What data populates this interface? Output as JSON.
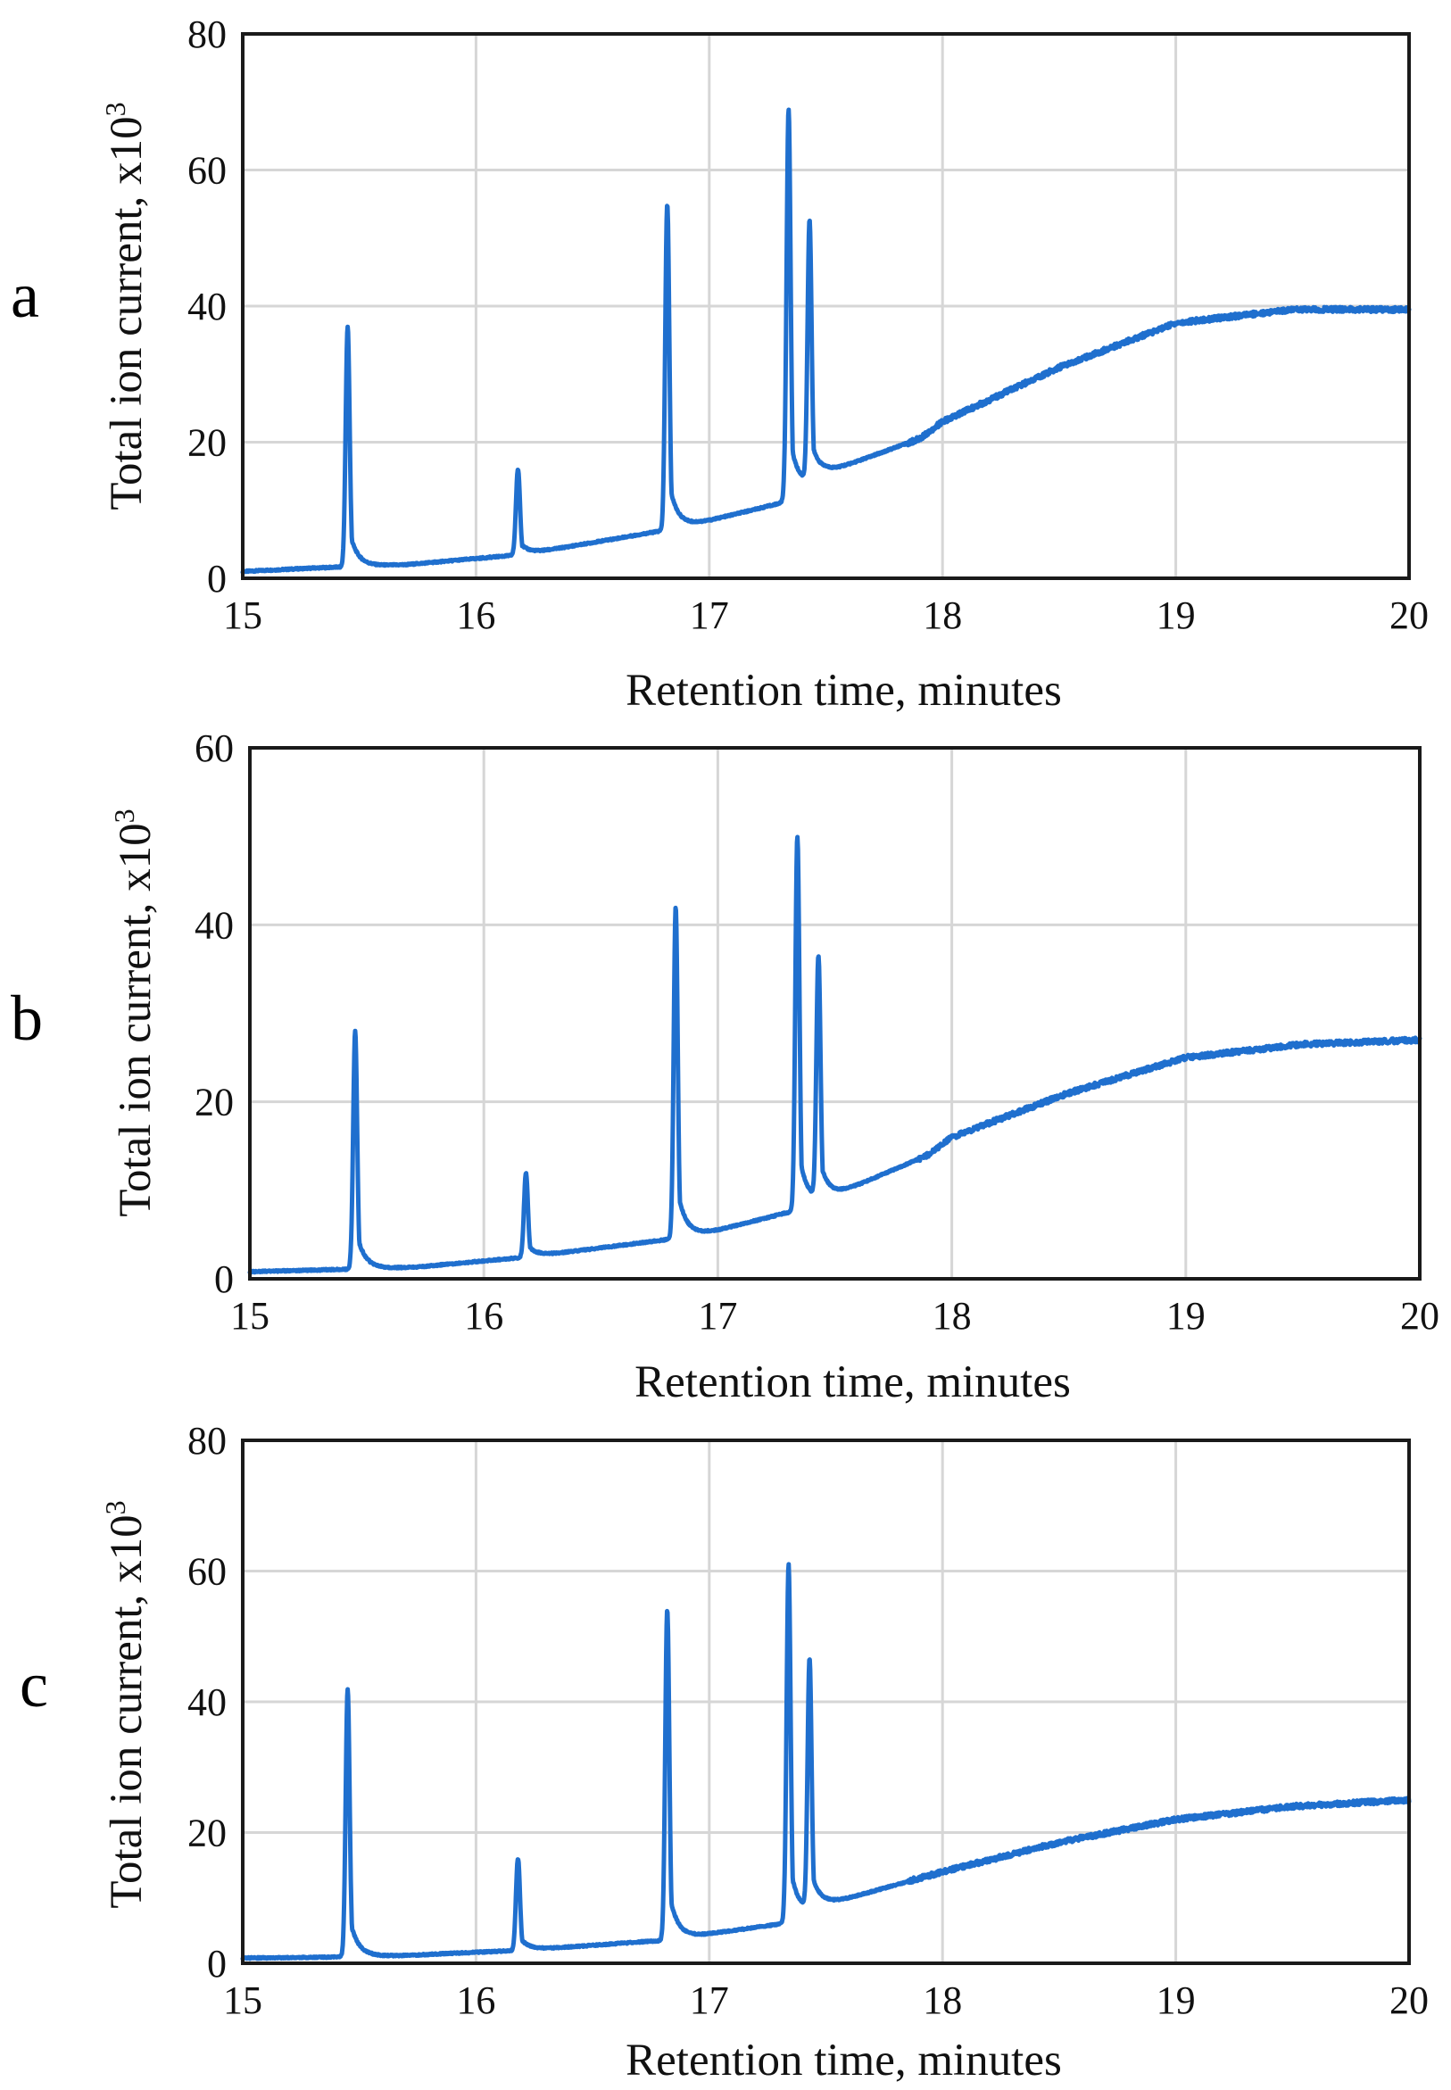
{
  "figure": {
    "background": "#ffffff",
    "trace_color": "#1f6fce"
  },
  "chart_data": [
    {
      "type": "line",
      "panel_label": "a",
      "xlabel": "Retention time, minutes",
      "ylabel": "Total ion current, x10",
      "ylabel_superscript": "3",
      "xlim": [
        15,
        20
      ],
      "ylim": [
        0,
        80
      ],
      "xticks": [
        "15",
        "16",
        "17",
        "18",
        "19",
        "20"
      ],
      "yticks": [
        "0",
        "20",
        "40",
        "60",
        "80"
      ],
      "grid": true,
      "series": [
        {
          "name": "Total ion current",
          "baseline": [
            [
              15,
              1
            ],
            [
              15.3,
              1.5
            ],
            [
              15.7,
              2
            ],
            [
              16.2,
              3.5
            ],
            [
              16.8,
              7
            ],
            [
              17.0,
              8.5
            ],
            [
              17.3,
              11
            ],
            [
              17.5,
              15.5
            ],
            [
              17.9,
              20.5
            ],
            [
              18.0,
              23
            ],
            [
              18.5,
              31
            ],
            [
              19.0,
              37.5
            ],
            [
              19.5,
              39.5
            ],
            [
              20.0,
              39.5
            ]
          ],
          "peaks": [
            {
              "rt": 15.45,
              "apex": 37
            },
            {
              "rt": 16.18,
              "apex": 16
            },
            {
              "rt": 16.82,
              "apex": 55
            },
            {
              "rt": 17.34,
              "apex": 69
            },
            {
              "rt": 17.43,
              "apex": 52
            }
          ]
        }
      ]
    },
    {
      "type": "line",
      "panel_label": "b",
      "xlabel": "Retention time, minutes",
      "ylabel": "Total ion current, x10",
      "ylabel_superscript": "3",
      "xlim": [
        15,
        20
      ],
      "ylim": [
        0,
        60
      ],
      "xticks": [
        "15",
        "16",
        "17",
        "18",
        "19",
        "20"
      ],
      "yticks": [
        "0",
        "20",
        "40",
        "60"
      ],
      "grid": true,
      "series": [
        {
          "name": "Total ion current",
          "baseline": [
            [
              15,
              0.8
            ],
            [
              15.3,
              1
            ],
            [
              15.7,
              1.3
            ],
            [
              16.2,
              2.5
            ],
            [
              16.8,
              4.5
            ],
            [
              17.0,
              5.5
            ],
            [
              17.3,
              7.5
            ],
            [
              17.5,
              9.5
            ],
            [
              17.9,
              14
            ],
            [
              18.0,
              16
            ],
            [
              18.5,
              21
            ],
            [
              19.0,
              25
            ],
            [
              19.5,
              26.5
            ],
            [
              20.0,
              27
            ]
          ],
          "peaks": [
            {
              "rt": 15.45,
              "apex": 28
            },
            {
              "rt": 16.18,
              "apex": 12
            },
            {
              "rt": 16.82,
              "apex": 42
            },
            {
              "rt": 17.34,
              "apex": 50
            },
            {
              "rt": 17.43,
              "apex": 36
            }
          ]
        }
      ]
    },
    {
      "type": "line",
      "panel_label": "c",
      "xlabel": "Retention time, minutes",
      "ylabel": "Total ion current, x10",
      "ylabel_superscript": "3",
      "xlim": [
        15,
        20
      ],
      "ylim": [
        0,
        80
      ],
      "xticks": [
        "15",
        "16",
        "17",
        "18",
        "19",
        "20"
      ],
      "yticks": [
        "0",
        "20",
        "40",
        "60",
        "80"
      ],
      "grid": true,
      "series": [
        {
          "name": "Total ion current",
          "baseline": [
            [
              15,
              0.8
            ],
            [
              15.3,
              0.9
            ],
            [
              15.7,
              1.2
            ],
            [
              16.2,
              2
            ],
            [
              16.8,
              3.5
            ],
            [
              17.0,
              4.5
            ],
            [
              17.3,
              6
            ],
            [
              17.5,
              9
            ],
            [
              17.9,
              13
            ],
            [
              18.0,
              14
            ],
            [
              18.5,
              18.5
            ],
            [
              19.0,
              22
            ],
            [
              19.5,
              24
            ],
            [
              20.0,
              25
            ]
          ],
          "peaks": [
            {
              "rt": 15.45,
              "apex": 42
            },
            {
              "rt": 16.18,
              "apex": 16
            },
            {
              "rt": 16.82,
              "apex": 54
            },
            {
              "rt": 17.34,
              "apex": 61
            },
            {
              "rt": 17.43,
              "apex": 46
            }
          ]
        }
      ]
    }
  ]
}
